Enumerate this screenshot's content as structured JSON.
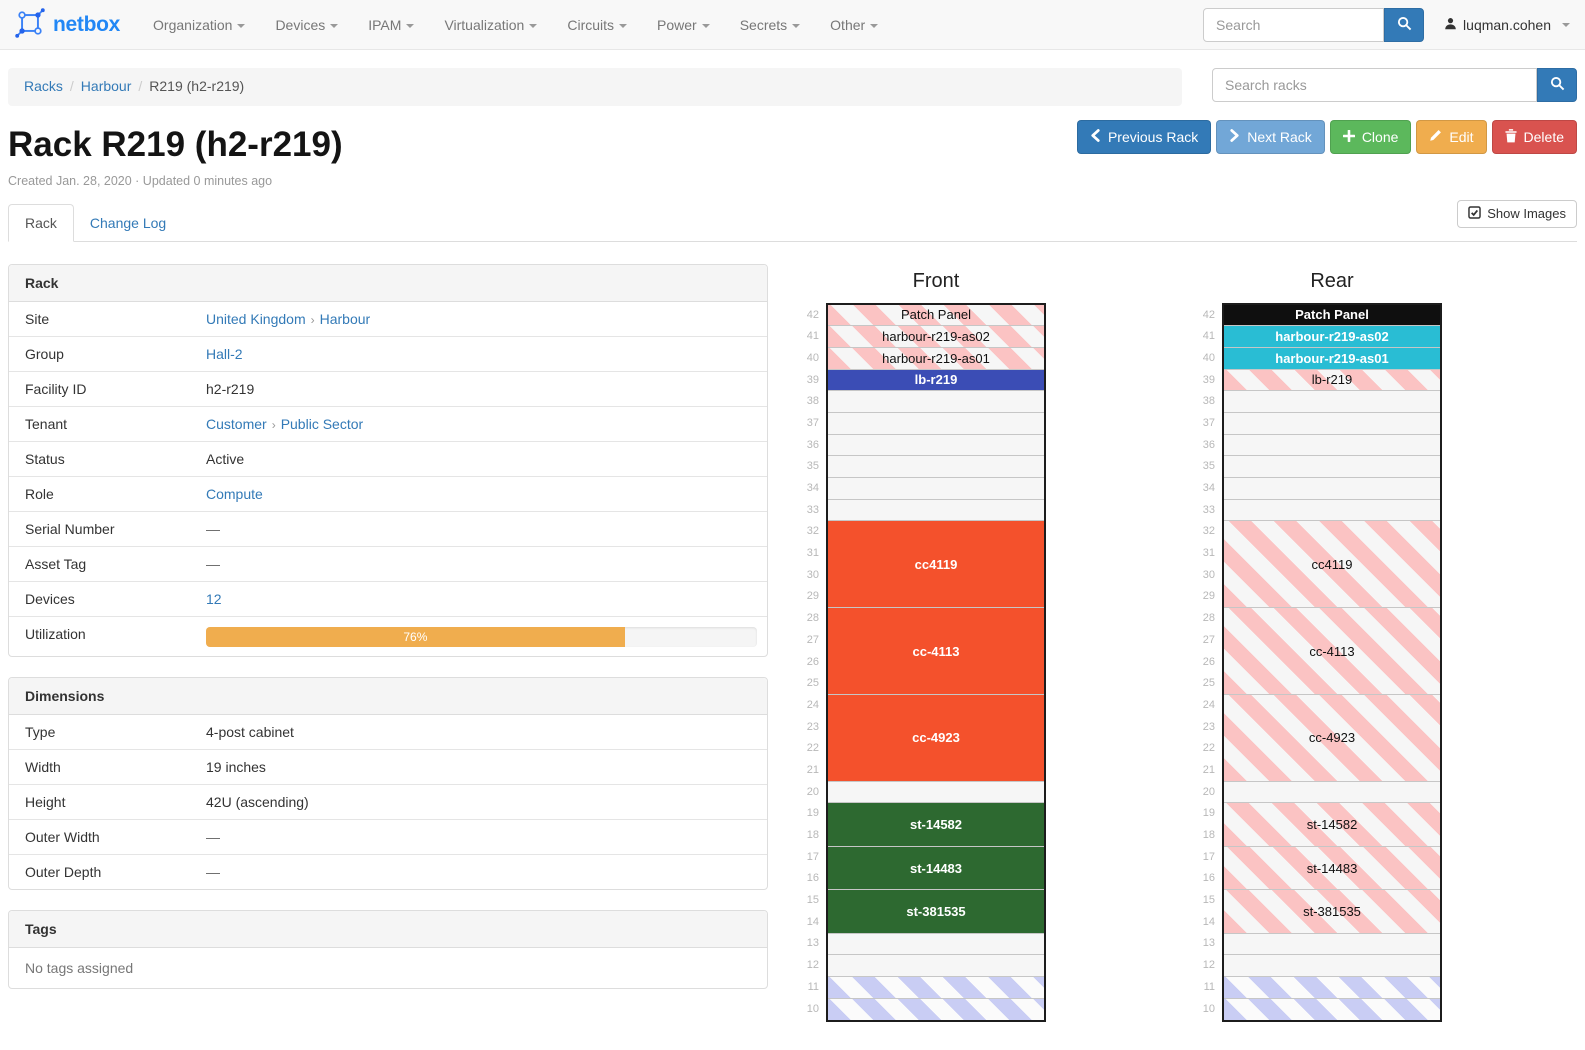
{
  "colors": {
    "accent": "#337ab7",
    "primary_light": "#72a7d7",
    "success": "#5cb85c",
    "warning": "#f0ad4e",
    "danger": "#d9534f",
    "brand_blue": "#2287f5",
    "device_orange": "#f4512c",
    "device_green": "#2d6930",
    "device_indigo": "#3b4db5",
    "device_cyan": "#29bdd4",
    "device_black": "#0f0f0f"
  },
  "navbar": {
    "brand": "netbox",
    "menus": [
      {
        "label": "Organization"
      },
      {
        "label": "Devices"
      },
      {
        "label": "IPAM"
      },
      {
        "label": "Virtualization"
      },
      {
        "label": "Circuits"
      },
      {
        "label": "Power"
      },
      {
        "label": "Secrets"
      },
      {
        "label": "Other"
      }
    ],
    "search": {
      "placeholder": "Search",
      "icon": "search-icon"
    },
    "user": {
      "name": "luqman.cohen",
      "icon": "user-icon"
    }
  },
  "breadcrumb": [
    {
      "label": "Racks",
      "link": true
    },
    {
      "label": "Harbour",
      "link": true
    },
    {
      "label": "R219 (h2-r219)",
      "link": false
    }
  ],
  "rack_search": {
    "placeholder": "Search racks",
    "icon": "search-icon"
  },
  "actions": [
    {
      "name": "previous-rack-button",
      "label": "Previous Rack",
      "icon": "chevron-left-icon",
      "color": "#337ab7"
    },
    {
      "name": "next-rack-button",
      "label": "Next Rack",
      "icon": "chevron-right-icon",
      "color": "#72a7d7"
    },
    {
      "name": "clone-button",
      "label": "Clone",
      "icon": "plus-icon",
      "color": "#5cb85c"
    },
    {
      "name": "edit-button",
      "label": "Edit",
      "icon": "pencil-icon",
      "color": "#f0ad4e"
    },
    {
      "name": "delete-button",
      "label": "Delete",
      "icon": "trash-icon",
      "color": "#d9534f"
    }
  ],
  "page": {
    "title": "Rack R219 (h2-r219)",
    "meta": "Created Jan. 28, 2020 · Updated 0 minutes ago"
  },
  "tabs": [
    {
      "label": "Rack",
      "active": true
    },
    {
      "label": "Change Log",
      "active": false
    }
  ],
  "show_images": {
    "label": "Show Images",
    "icon": "check-square-icon"
  },
  "rack_panel": {
    "title": "Rack",
    "rows": [
      {
        "label": "Site",
        "parts": [
          {
            "text": "United Kingdom",
            "type": "link"
          },
          {
            "text": "Harbour",
            "type": "link"
          }
        ]
      },
      {
        "label": "Group",
        "parts": [
          {
            "text": "Hall-2",
            "type": "link"
          }
        ]
      },
      {
        "label": "Facility ID",
        "parts": [
          {
            "text": "h2-r219",
            "type": "text"
          }
        ]
      },
      {
        "label": "Tenant",
        "parts": [
          {
            "text": "Customer",
            "type": "link"
          },
          {
            "text": "Public Sector",
            "type": "link"
          }
        ]
      },
      {
        "label": "Status",
        "parts": [
          {
            "text": "Active",
            "type": "text"
          }
        ]
      },
      {
        "label": "Role",
        "parts": [
          {
            "text": "Compute",
            "type": "link"
          }
        ]
      },
      {
        "label": "Serial Number",
        "parts": [
          {
            "text": "—",
            "type": "muted"
          }
        ]
      },
      {
        "label": "Asset Tag",
        "parts": [
          {
            "text": "—",
            "type": "muted"
          }
        ]
      },
      {
        "label": "Devices",
        "parts": [
          {
            "text": "12",
            "type": "link"
          }
        ]
      },
      {
        "label": "Utilization",
        "progress": {
          "percent": 76,
          "text": "76%"
        }
      }
    ]
  },
  "dimensions_panel": {
    "title": "Dimensions",
    "rows": [
      {
        "label": "Type",
        "parts": [
          {
            "text": "4-post cabinet",
            "type": "text"
          }
        ]
      },
      {
        "label": "Width",
        "parts": [
          {
            "text": "19 inches",
            "type": "text"
          }
        ]
      },
      {
        "label": "Height",
        "parts": [
          {
            "text": "42U (ascending)",
            "type": "text"
          }
        ]
      },
      {
        "label": "Outer Width",
        "parts": [
          {
            "text": "—",
            "type": "muted"
          }
        ]
      },
      {
        "label": "Outer Depth",
        "parts": [
          {
            "text": "—",
            "type": "muted"
          }
        ]
      }
    ]
  },
  "tags_panel": {
    "title": "Tags",
    "empty_text": "No tags assigned"
  },
  "elevations": [
    {
      "title": "Front",
      "top_unit": 42,
      "bottom_unit": 10,
      "slots": [
        {
          "u": 42,
          "h": 1,
          "label": "Patch Panel",
          "kind": "ghost"
        },
        {
          "u": 41,
          "h": 1,
          "label": "harbour-r219-as02",
          "kind": "ghost"
        },
        {
          "u": 40,
          "h": 1,
          "label": "harbour-r219-as01",
          "kind": "ghost"
        },
        {
          "u": 39,
          "h": 1,
          "label": "lb-r219",
          "kind": "solid",
          "color": "#3b4db5"
        },
        {
          "u": 38,
          "h": 1,
          "kind": "empty"
        },
        {
          "u": 37,
          "h": 1,
          "kind": "empty"
        },
        {
          "u": 36,
          "h": 1,
          "kind": "empty"
        },
        {
          "u": 35,
          "h": 1,
          "kind": "empty"
        },
        {
          "u": 34,
          "h": 1,
          "kind": "empty"
        },
        {
          "u": 33,
          "h": 1,
          "kind": "empty"
        },
        {
          "u": 32,
          "h": 4,
          "label": "cc4119",
          "kind": "solid",
          "color": "#f4512c"
        },
        {
          "u": 28,
          "h": 4,
          "label": "cc-4113",
          "kind": "solid",
          "color": "#f4512c"
        },
        {
          "u": 24,
          "h": 4,
          "label": "cc-4923",
          "kind": "solid",
          "color": "#f4512c"
        },
        {
          "u": 20,
          "h": 1,
          "kind": "empty"
        },
        {
          "u": 19,
          "h": 2,
          "label": "st-14582",
          "kind": "solid",
          "color": "#2d6930"
        },
        {
          "u": 17,
          "h": 2,
          "label": "st-14483",
          "kind": "solid",
          "color": "#2d6930"
        },
        {
          "u": 15,
          "h": 2,
          "label": "st-381535",
          "kind": "solid",
          "color": "#2d6930"
        },
        {
          "u": 13,
          "h": 1,
          "kind": "empty"
        },
        {
          "u": 12,
          "h": 1,
          "kind": "empty"
        },
        {
          "u": 11,
          "h": 1,
          "kind": "reserved"
        },
        {
          "u": 10,
          "h": 1,
          "kind": "reserved"
        }
      ]
    },
    {
      "title": "Rear",
      "top_unit": 42,
      "bottom_unit": 10,
      "slots": [
        {
          "u": 42,
          "h": 1,
          "label": "Patch Panel",
          "kind": "solid",
          "color": "#0f0f0f"
        },
        {
          "u": 41,
          "h": 1,
          "label": "harbour-r219-as02",
          "kind": "solid",
          "color": "#29bdd4"
        },
        {
          "u": 40,
          "h": 1,
          "label": "harbour-r219-as01",
          "kind": "solid",
          "color": "#29bdd4"
        },
        {
          "u": 39,
          "h": 1,
          "label": "lb-r219",
          "kind": "ghost"
        },
        {
          "u": 38,
          "h": 1,
          "kind": "empty"
        },
        {
          "u": 37,
          "h": 1,
          "kind": "empty"
        },
        {
          "u": 36,
          "h": 1,
          "kind": "empty"
        },
        {
          "u": 35,
          "h": 1,
          "kind": "empty"
        },
        {
          "u": 34,
          "h": 1,
          "kind": "empty"
        },
        {
          "u": 33,
          "h": 1,
          "kind": "empty"
        },
        {
          "u": 32,
          "h": 4,
          "label": "cc4119",
          "kind": "ghost"
        },
        {
          "u": 28,
          "h": 4,
          "label": "cc-4113",
          "kind": "ghost"
        },
        {
          "u": 24,
          "h": 4,
          "label": "cc-4923",
          "kind": "ghost"
        },
        {
          "u": 20,
          "h": 1,
          "kind": "empty"
        },
        {
          "u": 19,
          "h": 2,
          "label": "st-14582",
          "kind": "ghost"
        },
        {
          "u": 17,
          "h": 2,
          "label": "st-14483",
          "kind": "ghost"
        },
        {
          "u": 15,
          "h": 2,
          "label": "st-381535",
          "kind": "ghost"
        },
        {
          "u": 13,
          "h": 1,
          "kind": "empty"
        },
        {
          "u": 12,
          "h": 1,
          "kind": "empty"
        },
        {
          "u": 11,
          "h": 1,
          "kind": "reserved"
        },
        {
          "u": 10,
          "h": 1,
          "kind": "reserved"
        }
      ]
    }
  ]
}
